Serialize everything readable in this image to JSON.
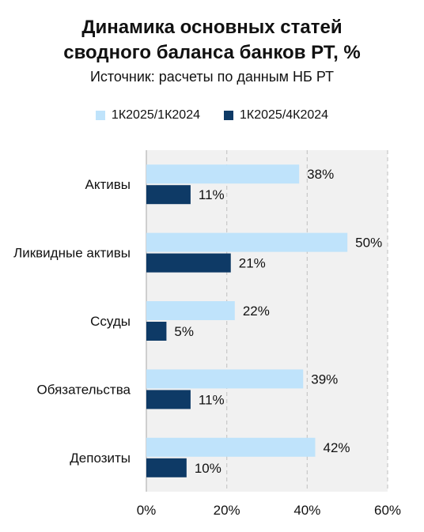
{
  "chart_data": {
    "type": "bar",
    "orientation": "horizontal",
    "title": "Динамика основных статей сводного баланса банков РТ, %",
    "title_lines": [
      "Динамика основных статей",
      "сводного баланса банков РТ, %"
    ],
    "subtitle": "Источник: расчеты по данным НБ РТ",
    "categories": [
      "Активы",
      "Ликвидные активы",
      "Ссуды",
      "Обязательства",
      "Депозиты"
    ],
    "series": [
      {
        "name": "1К2025/1К2024",
        "values": [
          38,
          50,
          22,
          39,
          42
        ],
        "labels": [
          "38%",
          "50%",
          "22%",
          "39%",
          "42%"
        ],
        "color": "#bfe3fb"
      },
      {
        "name": "1К2025/4К2024",
        "values": [
          11,
          21,
          5,
          11,
          10
        ],
        "labels": [
          "11%",
          "21%",
          "5%",
          "11%",
          "10%"
        ],
        "color": "#0e3a66"
      }
    ],
    "xlim": [
      0,
      60
    ],
    "x_ticks": [
      0,
      20,
      40,
      60
    ],
    "x_tick_labels": [
      "0%",
      "20%",
      "40%",
      "60%"
    ],
    "grid": "vertical dashed",
    "legend_position": "top",
    "plot_background": "#f1f1f1"
  }
}
